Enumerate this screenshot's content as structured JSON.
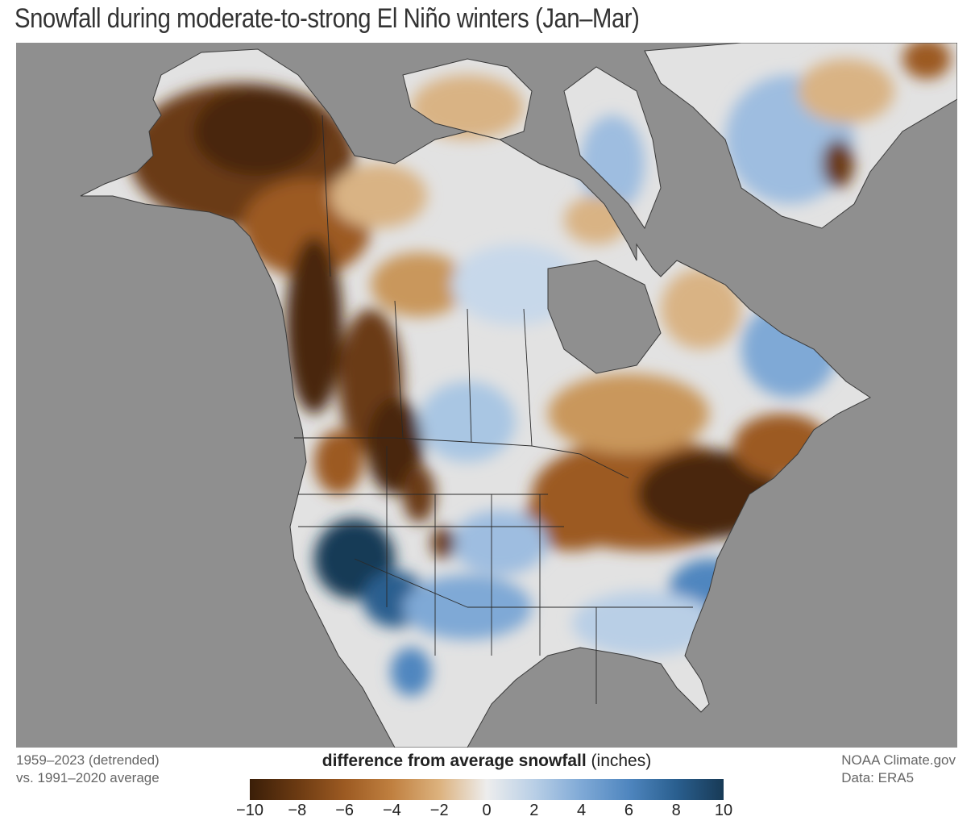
{
  "title": "Snowfall during moderate-to-strong El Niño winters (Jan–Mar)",
  "footer": {
    "period_line1": "1959–2023 (detrended)",
    "period_line2": "vs. 1991–2020 average",
    "credit_line1": "NOAA Climate.gov",
    "credit_line2": "Data: ERA5"
  },
  "legend": {
    "title_bold": "difference from average snowfall",
    "title_units": " (inches)",
    "ticks": [
      "−10",
      "−8",
      "−6",
      "−4",
      "−2",
      "0",
      "2",
      "4",
      "6",
      "8",
      "10"
    ],
    "range": [
      -10,
      10
    ]
  },
  "colors": {
    "ocean": "#8f8f8f",
    "land_neutral": "#e2e2e2",
    "deficit_strong": "#4a2608",
    "deficit_mid": "#9c5a22",
    "deficit_light": "#d9b384",
    "surplus_light": "#b9cfe6",
    "surplus_mid": "#4f86bf",
    "surplus_strong": "#163a56"
  }
}
